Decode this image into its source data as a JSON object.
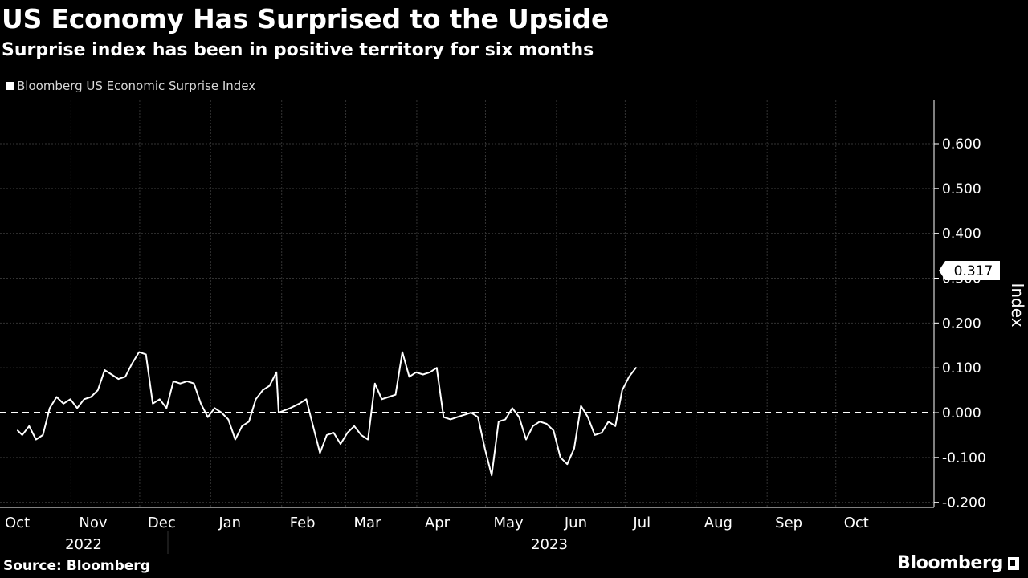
{
  "header": {
    "title": "US Economy Has Surprised to the Upside",
    "subtitle": "Surprise index has been in positive territory for six months"
  },
  "footer": {
    "source": "Source: Bloomberg",
    "logo_text": "Bloomberg"
  },
  "colors": {
    "background": "#000000",
    "line": "#ffffff",
    "grid": "#333333",
    "text": "#ffffff",
    "muted_text": "#d9d9d9"
  },
  "chart_data": {
    "type": "line",
    "title": "US Economy Has Surprised to the Upside",
    "subtitle": "Surprise index has been in positive territory for six months",
    "ylabel": "Index",
    "ylim": [
      -0.2,
      0.7
    ],
    "yticks": [
      "0.600",
      "0.500",
      "0.400",
      "0.300",
      "0.200",
      "0.100",
      "0.000",
      "-0.100",
      "-0.200"
    ],
    "ytick_values": [
      0.6,
      0.5,
      0.4,
      0.3,
      0.2,
      0.1,
      0.0,
      -0.1,
      -0.2
    ],
    "xlim": [
      "2022-10-01",
      "2023-10-26"
    ],
    "month_labels": [
      {
        "label": "Oct",
        "date": "2022-10-01"
      },
      {
        "label": "Nov",
        "date": "2022-11-01"
      },
      {
        "label": "Dec",
        "date": "2022-12-01"
      },
      {
        "label": "Jan",
        "date": "2023-01-01"
      },
      {
        "label": "Feb",
        "date": "2023-02-01"
      },
      {
        "label": "Mar",
        "date": "2023-03-01"
      },
      {
        "label": "Apr",
        "date": "2023-04-01"
      },
      {
        "label": "May",
        "date": "2023-05-01"
      },
      {
        "label": "Jun",
        "date": "2023-06-01"
      },
      {
        "label": "Jul",
        "date": "2023-07-01"
      },
      {
        "label": "Aug",
        "date": "2023-08-01"
      },
      {
        "label": "Sep",
        "date": "2023-09-01"
      },
      {
        "label": "Oct",
        "date": "2023-10-01"
      }
    ],
    "year_labels": [
      {
        "label": "2022",
        "from": "2022-10-01",
        "to": "2023-01-01"
      },
      {
        "label": "2023",
        "from": "2023-01-01",
        "to": "2023-10-26"
      }
    ],
    "grid": true,
    "reference_line": {
      "y": 0.0,
      "style": "dashed"
    },
    "legend_position": "top-left",
    "last_value_label": "0.317",
    "series": [
      {
        "name": "Bloomberg US Economic Surprise Index",
        "color": "#ffffff",
        "points": [
          [
            "2022-10-01",
            -0.04
          ],
          [
            "2022-10-03",
            -0.05
          ],
          [
            "2022-10-06",
            -0.03
          ],
          [
            "2022-10-09",
            -0.06
          ],
          [
            "2022-10-12",
            -0.05
          ],
          [
            "2022-10-15",
            0.01
          ],
          [
            "2022-10-18",
            0.035
          ],
          [
            "2022-10-21",
            0.02
          ],
          [
            "2022-10-24",
            0.03
          ],
          [
            "2022-10-27",
            0.01
          ],
          [
            "2022-10-30",
            0.03
          ],
          [
            "2022-11-02",
            0.035
          ],
          [
            "2022-11-05",
            0.05
          ],
          [
            "2022-11-08",
            0.095
          ],
          [
            "2022-11-11",
            0.085
          ],
          [
            "2022-11-14",
            0.075
          ],
          [
            "2022-11-17",
            0.08
          ],
          [
            "2022-11-20",
            0.11
          ],
          [
            "2022-11-23",
            0.135
          ],
          [
            "2022-11-26",
            0.13
          ],
          [
            "2022-11-29",
            0.02
          ],
          [
            "2022-12-02",
            0.03
          ],
          [
            "2022-12-05",
            0.01
          ],
          [
            "2022-12-08",
            0.07
          ],
          [
            "2022-12-11",
            0.065
          ],
          [
            "2022-12-14",
            0.07
          ],
          [
            "2022-12-17",
            0.065
          ],
          [
            "2022-12-20",
            0.02
          ],
          [
            "2022-12-23",
            -0.01
          ],
          [
            "2022-12-26",
            0.01
          ],
          [
            "2022-12-29",
            0.0
          ],
          [
            "2023-01-01",
            -0.015
          ],
          [
            "2023-01-04",
            -0.06
          ],
          [
            "2023-01-07",
            -0.03
          ],
          [
            "2023-01-10",
            -0.02
          ],
          [
            "2023-01-13",
            0.03
          ],
          [
            "2023-01-16",
            0.05
          ],
          [
            "2023-01-19",
            0.06
          ],
          [
            "2023-01-22",
            0.09
          ],
          [
            "2023-01-23",
            0.0
          ],
          [
            "2023-01-28",
            0.01
          ],
          [
            "2023-02-01",
            0.02
          ],
          [
            "2023-02-04",
            0.03
          ],
          [
            "2023-02-07",
            -0.03
          ],
          [
            "2023-02-10",
            -0.09
          ],
          [
            "2023-02-13",
            -0.05
          ],
          [
            "2023-02-16",
            -0.045
          ],
          [
            "2023-02-19",
            -0.07
          ],
          [
            "2023-02-22",
            -0.045
          ],
          [
            "2023-02-25",
            -0.03
          ],
          [
            "2023-02-28",
            -0.05
          ],
          [
            "2023-03-03",
            -0.06
          ],
          [
            "2023-03-06",
            0.065
          ],
          [
            "2023-03-09",
            0.03
          ],
          [
            "2023-03-12",
            0.035
          ],
          [
            "2023-03-15",
            0.04
          ],
          [
            "2023-03-18",
            0.135
          ],
          [
            "2023-03-21",
            0.08
          ],
          [
            "2023-03-24",
            0.09
          ],
          [
            "2023-03-27",
            0.085
          ],
          [
            "2023-03-30",
            0.09
          ],
          [
            "2023-04-02",
            0.1
          ],
          [
            "2023-04-05",
            -0.01
          ],
          [
            "2023-04-08",
            -0.015
          ],
          [
            "2023-04-11",
            -0.01
          ],
          [
            "2023-04-14",
            -0.005
          ],
          [
            "2023-04-17",
            0.0
          ],
          [
            "2023-04-20",
            -0.01
          ],
          [
            "2023-04-23",
            -0.08
          ],
          [
            "2023-04-26",
            -0.14
          ],
          [
            "2023-04-29",
            -0.02
          ],
          [
            "2023-05-02",
            -0.015
          ],
          [
            "2023-05-05",
            0.01
          ],
          [
            "2023-05-08",
            -0.01
          ],
          [
            "2023-05-11",
            -0.06
          ],
          [
            "2023-05-14",
            -0.03
          ],
          [
            "2023-05-17",
            -0.02
          ],
          [
            "2023-05-20",
            -0.025
          ],
          [
            "2023-05-23",
            -0.04
          ],
          [
            "2023-05-26",
            -0.1
          ],
          [
            "2023-05-29",
            -0.115
          ],
          [
            "2023-06-01",
            -0.08
          ],
          [
            "2023-06-04",
            0.015
          ],
          [
            "2023-06-07",
            -0.01
          ],
          [
            "2023-06-10",
            -0.05
          ],
          [
            "2023-06-13",
            -0.045
          ],
          [
            "2023-06-16",
            -0.02
          ],
          [
            "2023-06-19",
            -0.03
          ],
          [
            "2023-06-22",
            0.05
          ],
          [
            "2023-06-25",
            0.08
          ],
          [
            "2023-06-28",
            0.1
          ]
        ]
      }
    ]
  }
}
